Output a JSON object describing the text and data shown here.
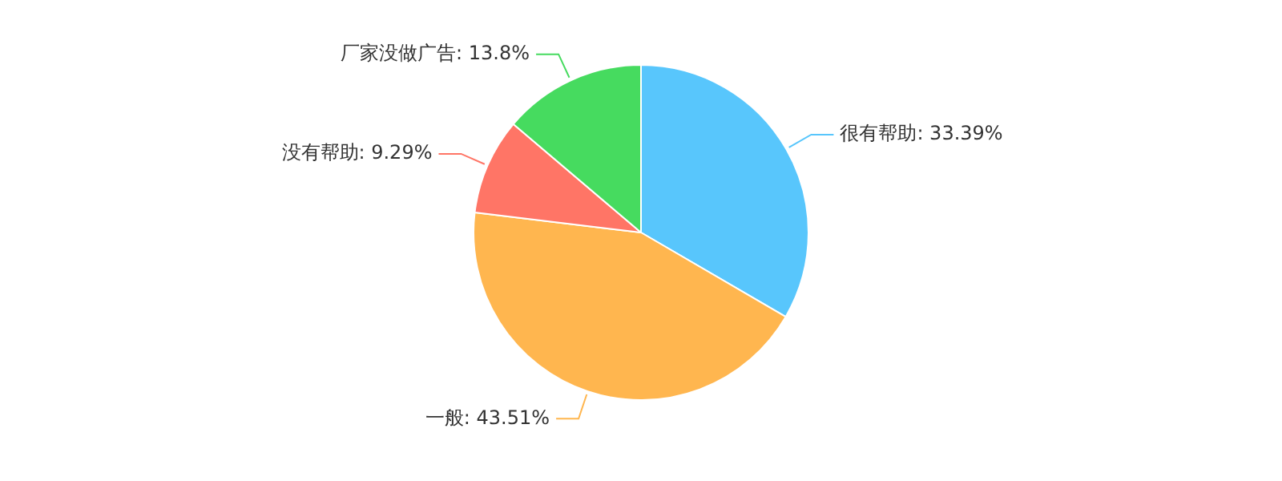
{
  "chart_data": {
    "type": "pie",
    "categories": [
      "很有帮助",
      "一般",
      "没有帮助",
      "厂家没做广告"
    ],
    "values": [
      33.39,
      43.51,
      9.29,
      13.8
    ],
    "value_labels": [
      "33.39%",
      "43.51%",
      "9.29%",
      "13.8%"
    ],
    "colors": [
      "#58c6fc",
      "#ffb64f",
      "#ff7566",
      "#46db5f"
    ],
    "legend": false
  }
}
